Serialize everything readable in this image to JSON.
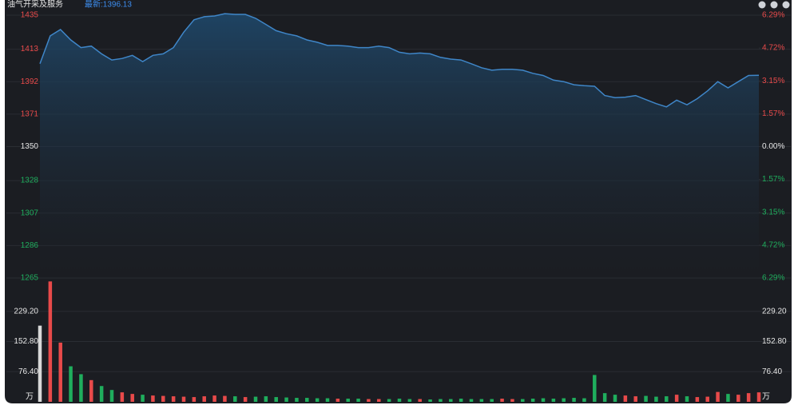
{
  "chart_data": {
    "type": "line",
    "title": "油气开采及服务",
    "latest": "最新:1396.13",
    "values": [
      1403.6,
      1421.6,
      1425.7,
      1419,
      1414,
      1415,
      1410,
      1406,
      1407,
      1409,
      1405,
      1409,
      1410,
      1414,
      1424,
      1432,
      1434,
      1434.5,
      1436,
      1435.5,
      1435.5,
      1433,
      1429,
      1425,
      1423,
      1421.6,
      1419,
      1417.5,
      1415.4,
      1415.4,
      1415,
      1414,
      1414,
      1415,
      1414,
      1411,
      1410,
      1410.5,
      1410,
      1407.7,
      1406.6,
      1406,
      1403.6,
      1401,
      1399.4,
      1400,
      1400,
      1399.4,
      1397.4,
      1396,
      1393,
      1392,
      1390,
      1389.4,
      1389,
      1383,
      1381.7,
      1382,
      1383,
      1380.4,
      1377.8,
      1375.7,
      1380,
      1377,
      1381,
      1386,
      1392,
      1388,
      1392,
      1396,
      1396.13
    ],
    "color": "#3f86c8",
    "ylim": [
      1265,
      1435
    ],
    "yticks": [
      1265,
      1286,
      1307,
      1328,
      1350,
      1371,
      1392,
      1413,
      1435
    ],
    "y2lim": [
      -6.29,
      6.29
    ],
    "y2ticks": [
      {
        "value": -6.29,
        "label": "6.29%"
      },
      {
        "value": -4.72,
        "label": "4.72%"
      },
      {
        "value": -3.15,
        "label": "3.15%"
      },
      {
        "value": -1.57,
        "label": "1.57%"
      },
      {
        "value": 0,
        "label": "0.00%"
      },
      {
        "value": 1.57,
        "label": "1.57%"
      },
      {
        "value": 3.15,
        "label": "3.15%"
      },
      {
        "value": 4.72,
        "label": "4.72%"
      },
      {
        "value": 6.29,
        "label": "6.29%"
      }
    ],
    "up_color": "#e84a4a",
    "down_color": "#1fae5d",
    "flat_color": "#d8d8d8",
    "volume": {
      "unit": "万",
      "values": [
        193,
        305,
        150,
        90,
        70,
        55,
        40,
        30,
        24,
        20,
        18,
        16,
        15,
        14,
        13,
        12,
        14,
        16,
        15,
        14,
        12,
        13,
        14,
        12,
        11,
        10,
        10,
        9,
        9,
        8,
        8,
        8,
        7,
        7,
        7,
        8,
        7,
        7,
        6,
        7,
        7,
        8,
        7,
        7,
        7,
        8,
        7,
        7,
        8,
        9,
        8,
        9,
        10,
        9,
        68,
        22,
        18,
        16,
        14,
        15,
        13,
        14,
        18,
        14,
        12,
        13,
        25,
        20,
        18,
        22,
        24
      ],
      "ylim": [
        0,
        305.6
      ],
      "yticks": [
        {
          "value": 76.4,
          "label": "76.40"
        },
        {
          "value": 152.8,
          "label": "152.80"
        },
        {
          "value": 229.2,
          "label": "229.20"
        }
      ]
    },
    "grid": true
  }
}
